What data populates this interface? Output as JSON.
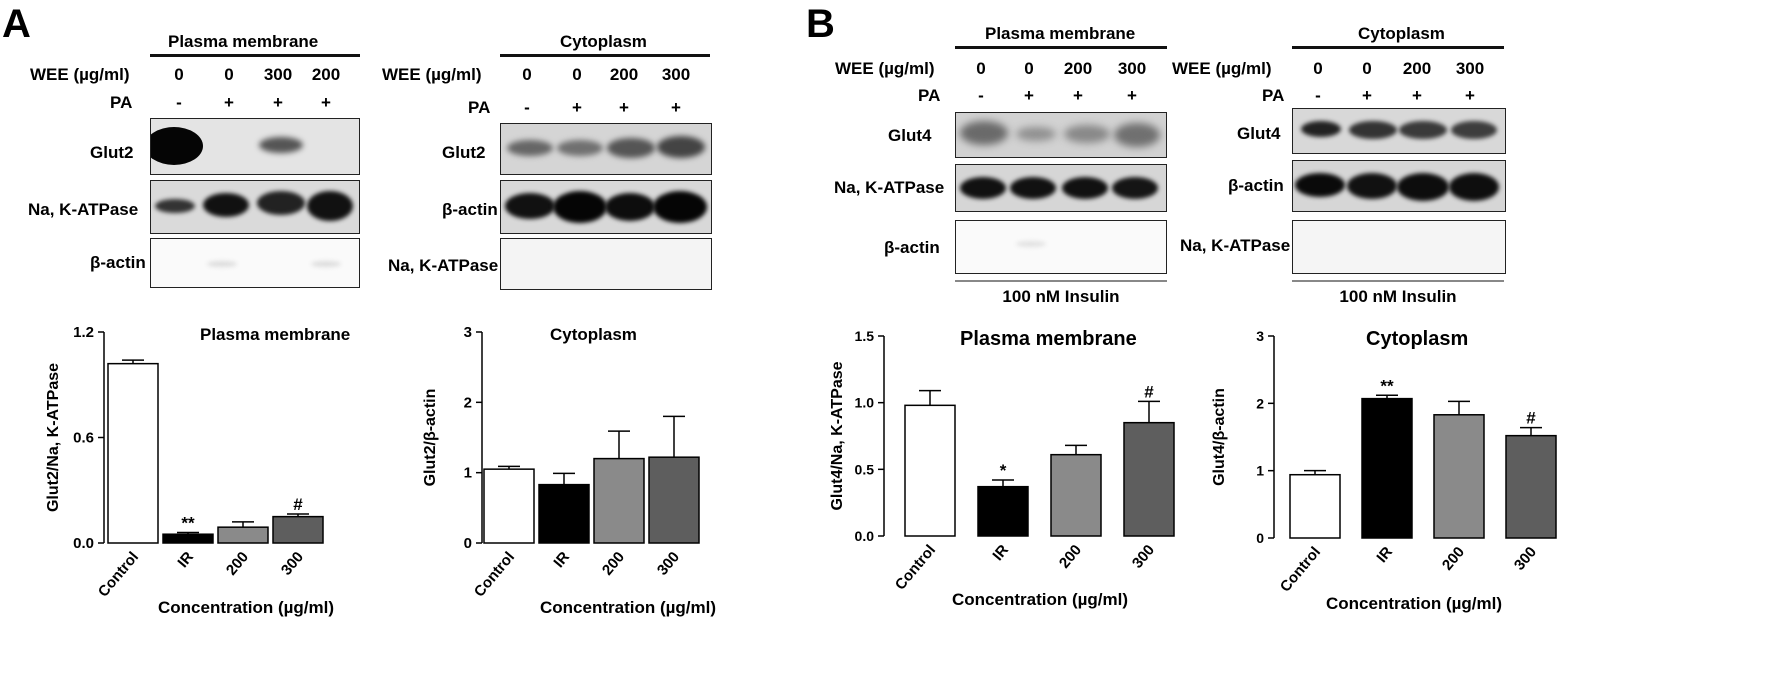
{
  "panelA": {
    "letter": "A",
    "left_blot": {
      "header": "Plasma membrane",
      "wee_label": "WEE (µg/ml)",
      "wee_values": [
        "0",
        "0",
        "300",
        "200"
      ],
      "pa_label": "PA",
      "pa_values": [
        "-",
        "+",
        "+",
        "+"
      ],
      "rows": [
        "Glut2",
        "Na, K-ATPase",
        "β-actin"
      ]
    },
    "right_blot": {
      "header": "Cytoplasm",
      "wee_label": "WEE (µg/ml)",
      "wee_values": [
        "0",
        "0",
        "200",
        "300"
      ],
      "pa_label": "PA",
      "pa_values": [
        "-",
        "+",
        "+",
        "+"
      ],
      "rows": [
        "Glut2",
        "β-actin",
        "Na, K-ATPase"
      ]
    }
  },
  "panelB": {
    "letter": "B",
    "left_blot": {
      "header": "Plasma membrane",
      "wee_label": "WEE (µg/ml)",
      "wee_values": [
        "0",
        "0",
        "200",
        "300"
      ],
      "pa_label": "PA",
      "pa_values": [
        "-",
        "+",
        "+",
        "+"
      ],
      "rows": [
        "Glut4",
        "Na, K-ATPase",
        "β-actin"
      ],
      "footer": "100 nM Insulin"
    },
    "right_blot": {
      "header": "Cytoplasm",
      "wee_label": "WEE (µg/ml)",
      "wee_values": [
        "0",
        "0",
        "200",
        "300"
      ],
      "pa_label": "PA",
      "pa_values": [
        "-",
        "+",
        "+",
        "+"
      ],
      "rows": [
        "Glut4",
        "β-actin",
        "Na, K-ATPase"
      ],
      "footer": "100 nM Insulin"
    }
  },
  "chart_data": [
    {
      "type": "bar",
      "title": "Plasma membrane",
      "categories": [
        "Control",
        "IR",
        "200",
        "300"
      ],
      "values": [
        1.02,
        0.05,
        0.09,
        0.15
      ],
      "errors": [
        0.02,
        0.01,
        0.03,
        0.015
      ],
      "annotations": [
        "",
        "**",
        "",
        "#"
      ],
      "ylabel": "Glut2/Na, K-ATPase",
      "xlabel": "Concentration (µg/ml)",
      "ylim": [
        0,
        1.2
      ],
      "yticks": [
        "0.0",
        "0.6",
        "1.2"
      ],
      "colors": [
        "#ffffff",
        "#000000",
        "#8a8a8a",
        "#5e5e5e"
      ]
    },
    {
      "type": "bar",
      "title": "Cytoplasm",
      "categories": [
        "Control",
        "IR",
        "200",
        "300"
      ],
      "values": [
        1.05,
        0.83,
        1.2,
        1.22
      ],
      "errors": [
        0.04,
        0.16,
        0.39,
        0.58
      ],
      "annotations": [
        "",
        "",
        "",
        ""
      ],
      "ylabel": "Glut2/β-actin",
      "xlabel": "Concentration (µg/ml)",
      "ylim": [
        0,
        3
      ],
      "yticks": [
        "0",
        "1",
        "2",
        "3"
      ],
      "colors": [
        "#ffffff",
        "#000000",
        "#8a8a8a",
        "#5e5e5e"
      ]
    },
    {
      "type": "bar",
      "title": "Plasma membrane",
      "categories": [
        "Control",
        "IR",
        "200",
        "300"
      ],
      "values": [
        0.98,
        0.37,
        0.61,
        0.85
      ],
      "errors": [
        0.11,
        0.05,
        0.07,
        0.16
      ],
      "annotations": [
        "",
        "*",
        "",
        "#"
      ],
      "ylabel": "Glut4/Na, K-ATPase",
      "xlabel": "Concentration (µg/ml)",
      "ylim": [
        0,
        1.5
      ],
      "yticks": [
        "0.0",
        "0.5",
        "1.0",
        "1.5"
      ],
      "colors": [
        "#ffffff",
        "#000000",
        "#8a8a8a",
        "#5e5e5e"
      ]
    },
    {
      "type": "bar",
      "title": "Cytoplasm",
      "categories": [
        "Control",
        "IR",
        "200",
        "300"
      ],
      "values": [
        0.94,
        2.07,
        1.83,
        1.52
      ],
      "errors": [
        0.06,
        0.05,
        0.2,
        0.12
      ],
      "annotations": [
        "",
        "**",
        "",
        "#"
      ],
      "ylabel": "Glut4/β-actin",
      "xlabel": "Concentration (µg/ml)",
      "ylim": [
        0,
        3
      ],
      "yticks": [
        "0",
        "1",
        "2",
        "3"
      ],
      "colors": [
        "#ffffff",
        "#000000",
        "#8a8a8a",
        "#5e5e5e"
      ]
    }
  ]
}
